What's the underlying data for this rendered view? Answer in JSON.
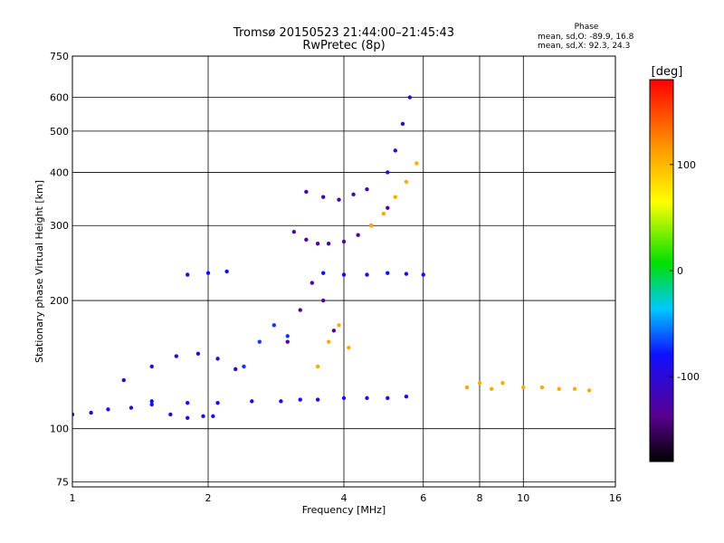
{
  "chart_data": {
    "type": "scatter",
    "title": "Tromsø 20150523 21:44:00–21:45:43",
    "subtitle": "RwPretec (8p)",
    "xlabel": "Frequency [MHz]",
    "ylabel": "Stationary phase Virtual Height [km]",
    "xscale": "log",
    "yscale": "log",
    "xlim": [
      1,
      16
    ],
    "ylim": [
      73,
      750
    ],
    "x_ticks": [
      1,
      2,
      4,
      6,
      8,
      10,
      16
    ],
    "x_tick_labels": [
      "1",
      "2",
      "4",
      "6",
      "8",
      "10",
      "16"
    ],
    "y_ticks": [
      75,
      100,
      200,
      300,
      400,
      500,
      600,
      750
    ],
    "y_tick_labels": [
      "75",
      "100",
      "200",
      "300",
      "400",
      "500",
      "600",
      "750"
    ],
    "grid": true,
    "stats": {
      "heading": "Phase",
      "line_o": "mean, sd,O: -89.9, 16.8",
      "line_x": "mean, sd,X:  92.3, 24.3"
    },
    "colorbar": {
      "label": "[deg]",
      "range": [
        -180,
        180
      ],
      "ticks": [
        100,
        0,
        -100
      ],
      "tick_labels": [
        "100",
        "0",
        "-100"
      ]
    },
    "series": [
      {
        "x": [
          1.0,
          1.1,
          1.2,
          1.35,
          1.5,
          1.65,
          1.8,
          1.95,
          2.05
        ],
        "y": [
          108,
          109,
          111,
          112,
          114,
          108,
          106,
          107,
          107
        ],
        "phase": -100
      },
      {
        "x": [
          1.5,
          1.8,
          2.1,
          2.5,
          2.9,
          3.2,
          3.5,
          4.0,
          4.5,
          5.0,
          5.5
        ],
        "y": [
          116,
          115,
          115,
          116,
          116,
          117,
          117,
          118,
          118,
          118,
          119
        ],
        "phase": -95
      },
      {
        "x": [
          1.3,
          1.5,
          1.7,
          1.9,
          2.1,
          2.3
        ],
        "y": [
          130,
          140,
          148,
          150,
          146,
          138
        ],
        "phase": -105
      },
      {
        "x": [
          2.4,
          2.6,
          2.8,
          3.0
        ],
        "y": [
          140,
          160,
          175,
          165
        ],
        "phase": -80
      },
      {
        "x": [
          3.0,
          3.2,
          3.4,
          3.6,
          3.8
        ],
        "y": [
          160,
          190,
          220,
          200,
          170
        ],
        "phase": -135
      },
      {
        "x": [
          3.5,
          3.7,
          3.9,
          4.1
        ],
        "y": [
          140,
          160,
          175,
          155
        ],
        "phase": 110
      },
      {
        "x": [
          3.1,
          3.3,
          3.5,
          3.7,
          4.0,
          4.3,
          4.6,
          5.0
        ],
        "y": [
          290,
          278,
          272,
          272,
          275,
          285,
          300,
          330
        ],
        "phase": -135
      },
      {
        "x": [
          3.3,
          3.6,
          3.9,
          4.2,
          4.5
        ],
        "y": [
          360,
          350,
          345,
          355,
          365
        ],
        "phase": -125
      },
      {
        "x": [
          4.6,
          4.9,
          5.2,
          5.5,
          5.8
        ],
        "y": [
          300,
          320,
          350,
          380,
          420
        ],
        "phase": 110
      },
      {
        "x": [
          5.0,
          5.2,
          5.4,
          5.6
        ],
        "y": [
          400,
          450,
          520,
          600
        ],
        "phase": -110
      },
      {
        "x": [
          1.8,
          2.0,
          2.2,
          3.6,
          4.0,
          4.5,
          5.0,
          5.5,
          6.0
        ],
        "y": [
          230,
          232,
          234,
          232,
          230,
          230,
          232,
          231,
          230
        ],
        "phase": -90
      },
      {
        "x": [
          7.5,
          8.0,
          8.5,
          9.0,
          10.0,
          11.0,
          12.0,
          13.0,
          14.0
        ],
        "y": [
          125,
          128,
          124,
          128,
          125,
          125,
          124,
          124,
          123
        ],
        "phase": 110
      }
    ]
  }
}
